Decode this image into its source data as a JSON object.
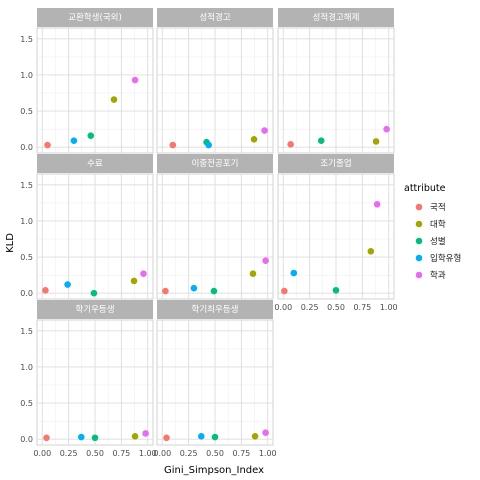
{
  "chart_data": {
    "type": "scatter",
    "xlabel": "Gini_Simpson_Index",
    "ylabel": "KLD",
    "xlim": [
      -0.05,
      1.05
    ],
    "ylim": [
      -0.08,
      1.65
    ],
    "x_ticks": [
      0.0,
      0.25,
      0.5,
      0.75,
      1.0
    ],
    "x_tick_labels": [
      "0.00",
      "0.25",
      "0.50",
      "0.75",
      "1.00"
    ],
    "y_ticks": [
      0.0,
      0.5,
      1.0,
      1.5
    ],
    "y_tick_labels": [
      "0.0",
      "0.5",
      "1.0",
      "1.5"
    ],
    "grid": true,
    "legend": {
      "title": "attribute",
      "position": "right",
      "entries": [
        {
          "key": "gukjeok",
          "label": "국적",
          "color": "#F8766D"
        },
        {
          "key": "daehak",
          "label": "대학",
          "color": "#A3A500"
        },
        {
          "key": "seongbyeol",
          "label": "성별",
          "color": "#00BF7D"
        },
        {
          "key": "ipsi",
          "label": "입학유형",
          "color": "#00B0F6"
        },
        {
          "key": "hakgwa",
          "label": "학과",
          "color": "#E76BF3"
        }
      ]
    },
    "panels": [
      {
        "title": "교환학생(국외)",
        "points": [
          {
            "attr": "gukjeok",
            "x": 0.05,
            "y": 0.03
          },
          {
            "attr": "ipsi",
            "x": 0.3,
            "y": 0.09
          },
          {
            "attr": "seongbyeol",
            "x": 0.46,
            "y": 0.16
          },
          {
            "attr": "daehak",
            "x": 0.68,
            "y": 0.66
          },
          {
            "attr": "hakgwa",
            "x": 0.88,
            "y": 0.93
          }
        ]
      },
      {
        "title": "성적경고",
        "points": [
          {
            "attr": "gukjeok",
            "x": 0.1,
            "y": 0.03
          },
          {
            "attr": "seongbyeol",
            "x": 0.42,
            "y": 0.07
          },
          {
            "attr": "ipsi",
            "x": 0.44,
            "y": 0.03
          },
          {
            "attr": "daehak",
            "x": 0.87,
            "y": 0.11
          },
          {
            "attr": "hakgwa",
            "x": 0.97,
            "y": 0.23
          }
        ]
      },
      {
        "title": "성적경고해제",
        "points": [
          {
            "attr": "gukjeok",
            "x": 0.07,
            "y": 0.04
          },
          {
            "attr": "seongbyeol",
            "x": 0.36,
            "y": 0.09
          },
          {
            "attr": "daehak",
            "x": 0.88,
            "y": 0.08
          },
          {
            "attr": "hakgwa",
            "x": 0.98,
            "y": 0.25
          }
        ]
      },
      {
        "title": "수료",
        "points": [
          {
            "attr": "gukjeok",
            "x": 0.03,
            "y": 0.04
          },
          {
            "attr": "ipsi",
            "x": 0.24,
            "y": 0.12
          },
          {
            "attr": "seongbyeol",
            "x": 0.49,
            "y": 0.0
          },
          {
            "attr": "daehak",
            "x": 0.87,
            "y": 0.17
          },
          {
            "attr": "hakgwa",
            "x": 0.96,
            "y": 0.27
          }
        ]
      },
      {
        "title": "이중전공포기",
        "points": [
          {
            "attr": "gukjeok",
            "x": 0.03,
            "y": 0.03
          },
          {
            "attr": "ipsi",
            "x": 0.3,
            "y": 0.07
          },
          {
            "attr": "seongbyeol",
            "x": 0.49,
            "y": 0.03
          },
          {
            "attr": "daehak",
            "x": 0.86,
            "y": 0.27
          },
          {
            "attr": "hakgwa",
            "x": 0.98,
            "y": 0.45
          }
        ]
      },
      {
        "title": "조기졸업",
        "points": [
          {
            "attr": "gukjeok",
            "x": 0.01,
            "y": 0.03
          },
          {
            "attr": "ipsi",
            "x": 0.1,
            "y": 0.28
          },
          {
            "attr": "seongbyeol",
            "x": 0.5,
            "y": 0.04
          },
          {
            "attr": "daehak",
            "x": 0.83,
            "y": 0.58
          },
          {
            "attr": "hakgwa",
            "x": 0.89,
            "y": 1.23
          }
        ]
      },
      {
        "title": "학기우등생",
        "points": [
          {
            "attr": "gukjeok",
            "x": 0.04,
            "y": 0.02
          },
          {
            "attr": "ipsi",
            "x": 0.37,
            "y": 0.03
          },
          {
            "attr": "seongbyeol",
            "x": 0.5,
            "y": 0.02
          },
          {
            "attr": "daehak",
            "x": 0.88,
            "y": 0.04
          },
          {
            "attr": "hakgwa",
            "x": 0.98,
            "y": 0.08
          }
        ]
      },
      {
        "title": "학기최우등생",
        "points": [
          {
            "attr": "gukjeok",
            "x": 0.04,
            "y": 0.02
          },
          {
            "attr": "ipsi",
            "x": 0.37,
            "y": 0.04
          },
          {
            "attr": "seongbyeol",
            "x": 0.5,
            "y": 0.03
          },
          {
            "attr": "daehak",
            "x": 0.88,
            "y": 0.04
          },
          {
            "attr": "hakgwa",
            "x": 0.98,
            "y": 0.09
          }
        ]
      }
    ]
  }
}
